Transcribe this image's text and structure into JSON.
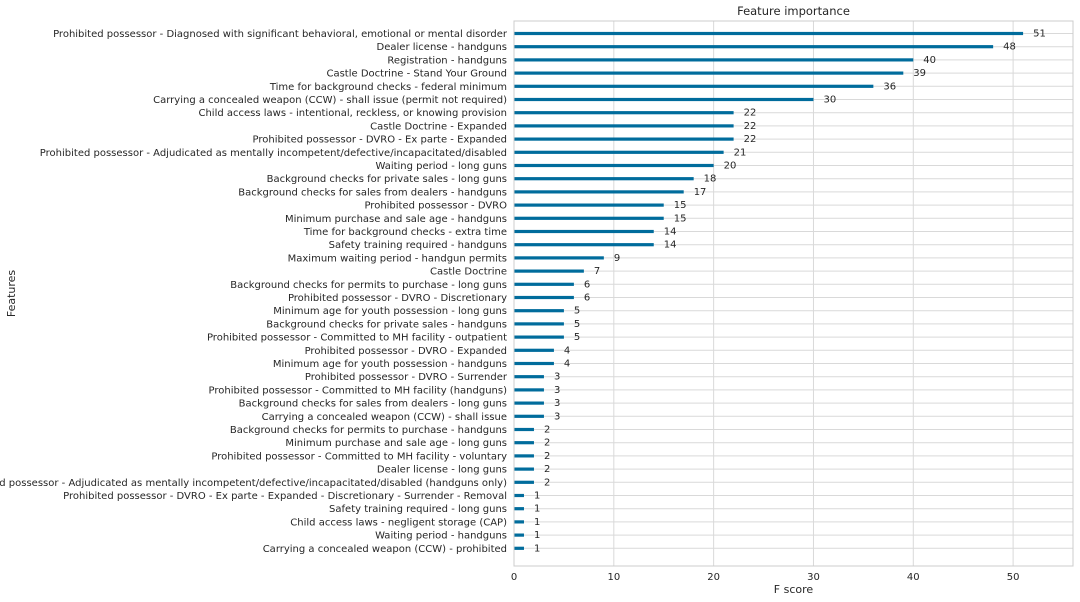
{
  "chart_data": {
    "type": "bar",
    "orientation": "horizontal",
    "title": "Feature importance",
    "xlabel": "F score",
    "ylabel": "Features",
    "xlim": [
      0,
      56
    ],
    "xticks": [
      0,
      10,
      20,
      30,
      40,
      50
    ],
    "grid": true,
    "bar_color": "#006c9c",
    "categories": [
      "Prohibited possessor - Diagnosed with significant behavioral, emotional or mental disorder",
      "Dealer license - handguns",
      "Registration - handguns",
      "Castle Doctrine - Stand Your Ground",
      "Time for background checks - federal minimum",
      "Carrying a concealed weapon (CCW) - shall issue (permit not required)",
      "Child access laws - intentional, reckless, or knowing provision",
      "Castle Doctrine - Expanded",
      "Prohibited possessor - DVRO - Ex parte - Expanded",
      "Prohibited possessor - Adjudicated as mentally incompetent/defective/incapacitated/disabled",
      "Waiting period - long guns",
      "Background checks for private sales - long guns",
      "Background checks for sales from dealers - handguns",
      "Prohibited possessor - DVRO",
      "Minimum purchase and sale age - handguns",
      "Time for background checks - extra time",
      "Safety training required - handguns",
      "Maximum waiting period - handgun permits",
      "Castle Doctrine",
      "Background checks for permits to purchase - long guns",
      "Prohibited possessor - DVRO - Discretionary",
      "Minimum age for youth possession - long guns",
      "Background checks for private sales - handguns",
      "Prohibited possessor - Committed to MH facility - outpatient",
      "Prohibited possessor - DVRO - Expanded",
      "Minimum age for youth possession - handguns",
      "Prohibited possessor - DVRO - Surrender",
      "Prohibited possessor - Committed to MH facility (handguns)",
      "Background checks for sales from dealers - long guns",
      "Carrying a concealed weapon (CCW) - shall issue",
      "Background checks for permits to purchase - handguns",
      "Minimum purchase and sale age - long guns",
      "Prohibited possessor - Committed to MH facility - voluntary",
      "Dealer license - long guns",
      "Prohibited possessor - Adjudicated as mentally incompetent/defective/incapacitated/disabled (handguns only)",
      "Prohibited possessor - DVRO - Ex parte - Expanded - Discretionary - Surrender - Removal",
      "Safety training required - long guns",
      "Child access laws - negligent storage (CAP)",
      "Waiting period - handguns",
      "Carrying a concealed weapon (CCW) - prohibited"
    ],
    "values": [
      51,
      48,
      40,
      39,
      36,
      30,
      22,
      22,
      22,
      21,
      20,
      18,
      17,
      15,
      15,
      14,
      14,
      9,
      7,
      6,
      6,
      5,
      5,
      5,
      4,
      4,
      3,
      3,
      3,
      3,
      2,
      2,
      2,
      2,
      2,
      1,
      1,
      1,
      1,
      1
    ]
  }
}
